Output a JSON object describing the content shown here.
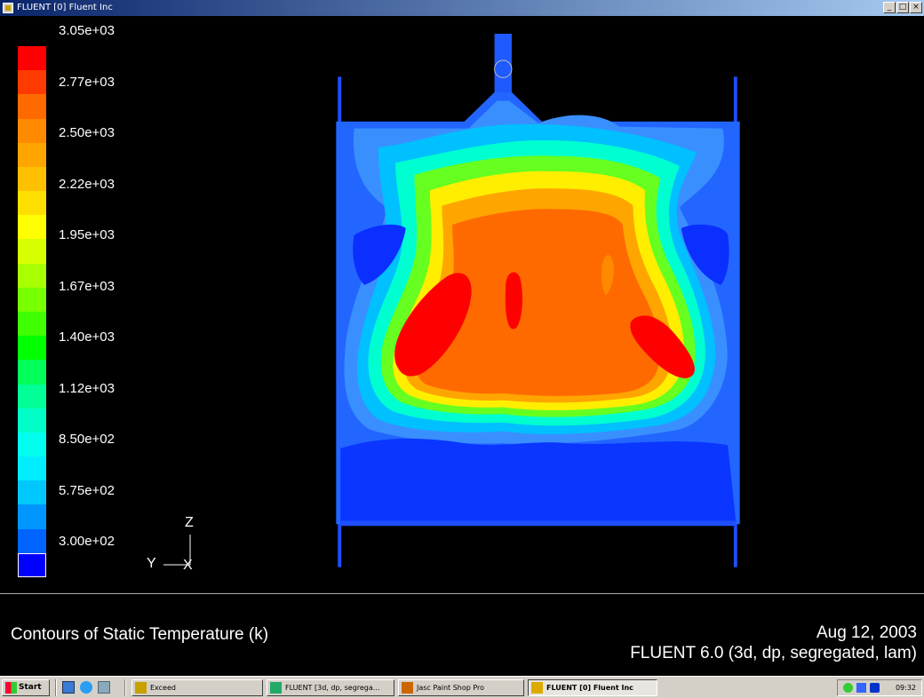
{
  "window": {
    "title": "FLUENT [0] Fluent Inc",
    "controls": [
      "_",
      "□",
      "×"
    ]
  },
  "colorbar": {
    "labels": [
      "3.05e+03",
      "2.77e+03",
      "2.50e+03",
      "2.22e+03",
      "1.95e+03",
      "1.67e+03",
      "1.40e+03",
      "1.12e+03",
      "8.50e+02",
      "5.75e+02",
      "3.00e+02"
    ],
    "colors_top_to_bottom": [
      "#ff0000",
      "#ff3a00",
      "#ff6a00",
      "#ff8a00",
      "#ffa500",
      "#ffc000",
      "#ffdf00",
      "#ffff00",
      "#d8ff00",
      "#a8ff00",
      "#78ff00",
      "#40ff00",
      "#00ff00",
      "#00ff58",
      "#00ff96",
      "#00ffc8",
      "#00ffee",
      "#00eeff",
      "#00c8ff",
      "#0096ff",
      "#0064ff",
      "#0000ff"
    ]
  },
  "triad": {
    "up": "Z",
    "left": "Y",
    "center": "X"
  },
  "plot_info": {
    "title": "Contours of Static Temperature (k)",
    "date": "Aug 12, 2003",
    "version": "FLUENT 6.0 (3d, dp, segregated, lam)"
  },
  "taskbar": {
    "start_label": "Start",
    "tasks": [
      {
        "label": "Exceed",
        "active": false
      },
      {
        "label": "FLUENT [3d, dp, segrega...",
        "active": false
      },
      {
        "label": "Jasc Paint Shop Pro",
        "active": false
      },
      {
        "label": "FLUENT [0] Fluent Inc",
        "active": true
      }
    ],
    "clock": "09:32"
  }
}
